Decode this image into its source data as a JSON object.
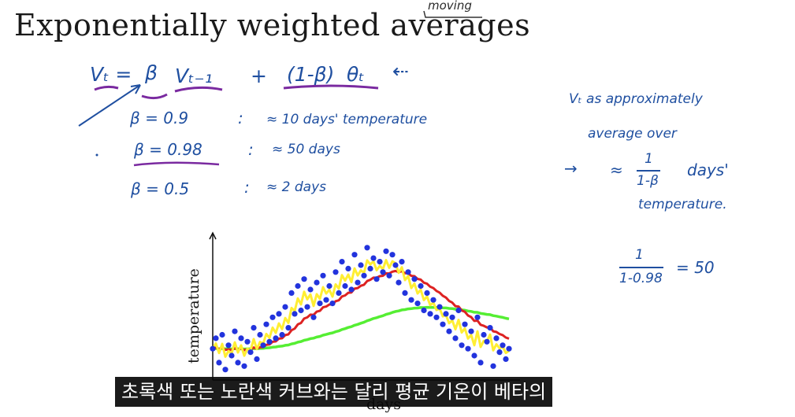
{
  "slide": {
    "title": "Exponentially weighted averages",
    "title_note": "moving"
  },
  "formula": {
    "lhs": "Vₜ =",
    "beta": "β",
    "vprev": "Vₜ₋₁",
    "plus": "+",
    "one_minus_beta": "(1-β)",
    "theta": "θₜ",
    "arrow": "⇠"
  },
  "examples": [
    {
      "beta": "β = 0.9",
      "colon": ":",
      "approx": "≈ 10 days' temperature"
    },
    {
      "beta": "β = 0.98",
      "colon": ":",
      "approx": "≈ 50 days"
    },
    {
      "beta": "β = 0.5",
      "colon": ":",
      "approx": "≈ 2 days"
    }
  ],
  "side_notes": {
    "line1": "Vₜ as approximately",
    "line2": "average over",
    "line3_arrow": "→",
    "line3_approx": "≈",
    "line3_frac_num": "1",
    "line3_frac_den": "1-β",
    "line3_days": "days'",
    "line4": "temperature.",
    "calc_num": "1",
    "calc_den": "1-0.98",
    "calc_result": "= 50"
  },
  "chart_data": {
    "type": "scatter",
    "xlabel": "days",
    "ylabel": "temperature",
    "series": [
      {
        "color": "#2233dd",
        "kind": "points"
      },
      {
        "color": "#ffee33",
        "kind": "line",
        "beta": 0.5
      },
      {
        "color": "#dd2222",
        "kind": "line",
        "beta": 0.9
      },
      {
        "color": "#55ee33",
        "kind": "line",
        "beta": 0.98
      }
    ],
    "x": [
      0,
      4,
      8,
      12,
      16,
      20,
      24,
      28,
      32,
      36,
      40,
      44,
      48,
      52,
      56,
      60,
      64,
      68,
      72,
      76,
      80,
      84,
      88,
      92,
      96,
      100,
      104,
      108,
      112,
      116,
      120,
      124,
      128,
      132,
      136,
      140,
      144,
      148,
      152,
      156,
      160,
      164,
      168,
      172,
      176,
      180,
      184,
      188,
      192,
      196,
      200,
      204,
      208,
      212,
      216,
      220,
      224,
      228,
      232,
      236,
      240,
      244,
      248,
      252,
      256,
      260,
      264,
      268,
      272,
      276,
      280,
      284,
      288,
      292,
      296,
      300,
      304,
      308,
      312,
      316,
      320,
      324,
      328,
      332,
      336,
      340,
      344,
      348,
      352,
      356,
      360,
      364,
      368,
      372,
      376
    ],
    "y": [
      38,
      44,
      30,
      46,
      26,
      40,
      34,
      48,
      30,
      44,
      28,
      42,
      36,
      50,
      32,
      46,
      40,
      52,
      42,
      56,
      44,
      58,
      46,
      62,
      50,
      70,
      58,
      74,
      60,
      78,
      62,
      72,
      56,
      76,
      64,
      80,
      66,
      74,
      64,
      82,
      70,
      88,
      74,
      84,
      72,
      92,
      76,
      86,
      80,
      96,
      84,
      90,
      78,
      88,
      82,
      94,
      80,
      92,
      86,
      76,
      88,
      70,
      82,
      66,
      78,
      64,
      74,
      60,
      70,
      58,
      66,
      56,
      62,
      52,
      58,
      48,
      56,
      44,
      60,
      40,
      52,
      38,
      48,
      34,
      56,
      30,
      46,
      42,
      50,
      28,
      44,
      36,
      40,
      32,
      38
    ],
    "xlim": [
      0,
      380
    ],
    "ylim": [
      20,
      100
    ]
  },
  "caption": "초록색 또는 노란색 커브와는 달리 평균 기온이 베타의"
}
